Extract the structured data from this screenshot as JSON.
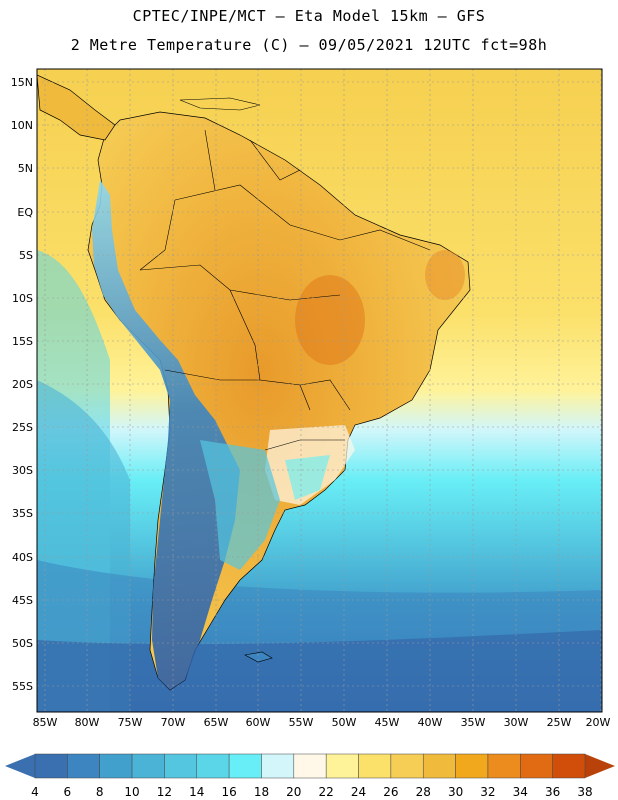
{
  "header": {
    "line1": "CPTEC/INPE/MCT –  Eta Model 15km – GFS",
    "line2": "2 Metre Temperature (C) – 09/05/2021 12UTC fct=98h"
  },
  "map": {
    "lat_labels": [
      "15N",
      "10N",
      "5N",
      "EQ",
      "5S",
      "10S",
      "15S",
      "20S",
      "25S",
      "30S",
      "35S",
      "40S",
      "45S",
      "50S",
      "55S"
    ],
    "lon_labels": [
      "85W",
      "80W",
      "75W",
      "70W",
      "65W",
      "60W",
      "55W",
      "50W",
      "45W",
      "40W",
      "35W",
      "30W",
      "25W",
      "20W"
    ],
    "lat_range": [
      17.5,
      -58
    ],
    "lon_range": [
      -86,
      -20
    ]
  },
  "colorbar": {
    "labels": [
      "4",
      "6",
      "8",
      "10",
      "12",
      "14",
      "16",
      "18",
      "20",
      "22",
      "24",
      "26",
      "28",
      "30",
      "32",
      "34",
      "36",
      "38"
    ],
    "colors": [
      "#3a6fb0",
      "#3c85c0",
      "#42a0cc",
      "#4bb4d6",
      "#54c6e0",
      "#5ad6e8",
      "#68eef6",
      "#d2f6fa",
      "#fff8e8",
      "#fff39a",
      "#fbe06a",
      "#f6cd55",
      "#f0bb3c",
      "#f2a81d",
      "#ec8c1e",
      "#e06b12",
      "#d04e0a"
    ],
    "under_color": "#3a6fb0",
    "over_color": "#b8420a"
  }
}
